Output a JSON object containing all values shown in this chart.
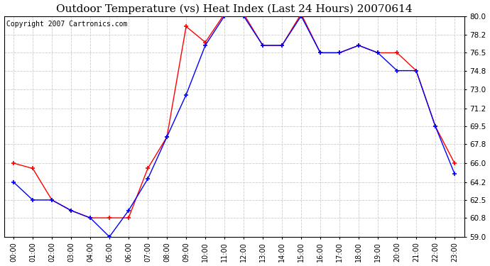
{
  "title": "Outdoor Temperature (vs) Heat Index (Last 24 Hours) 20070614",
  "copyright": "Copyright 2007 Cartronics.com",
  "x_labels": [
    "00:00",
    "01:00",
    "02:00",
    "03:00",
    "04:00",
    "05:00",
    "06:00",
    "07:00",
    "08:00",
    "09:00",
    "10:00",
    "11:00",
    "12:00",
    "13:00",
    "14:00",
    "15:00",
    "16:00",
    "17:00",
    "18:00",
    "19:00",
    "20:00",
    "21:00",
    "22:00",
    "23:00"
  ],
  "temp": [
    64.2,
    62.5,
    62.5,
    61.5,
    60.8,
    59.0,
    61.5,
    64.5,
    68.5,
    72.5,
    77.2,
    80.0,
    80.0,
    77.2,
    77.2,
    80.0,
    76.5,
    76.5,
    77.2,
    76.5,
    74.8,
    74.8,
    69.5,
    65.0
  ],
  "heat_index": [
    66.0,
    65.5,
    62.5,
    61.5,
    60.8,
    60.8,
    60.8,
    65.5,
    68.5,
    79.0,
    77.5,
    80.2,
    80.2,
    77.2,
    77.2,
    80.2,
    76.5,
    76.5,
    77.2,
    76.5,
    76.5,
    74.8,
    69.5,
    66.0
  ],
  "temp_color": "#0000FF",
  "heat_index_color": "#FF0000",
  "ylim_min": 59.0,
  "ylim_max": 80.0,
  "yticks": [
    59.0,
    60.8,
    62.5,
    64.2,
    66.0,
    67.8,
    69.5,
    71.2,
    73.0,
    74.8,
    76.5,
    78.2,
    80.0
  ],
  "background_color": "#FFFFFF",
  "plot_bg_color": "#FFFFFF",
  "grid_color": "#CCCCCC",
  "title_fontsize": 11,
  "copyright_fontsize": 7
}
